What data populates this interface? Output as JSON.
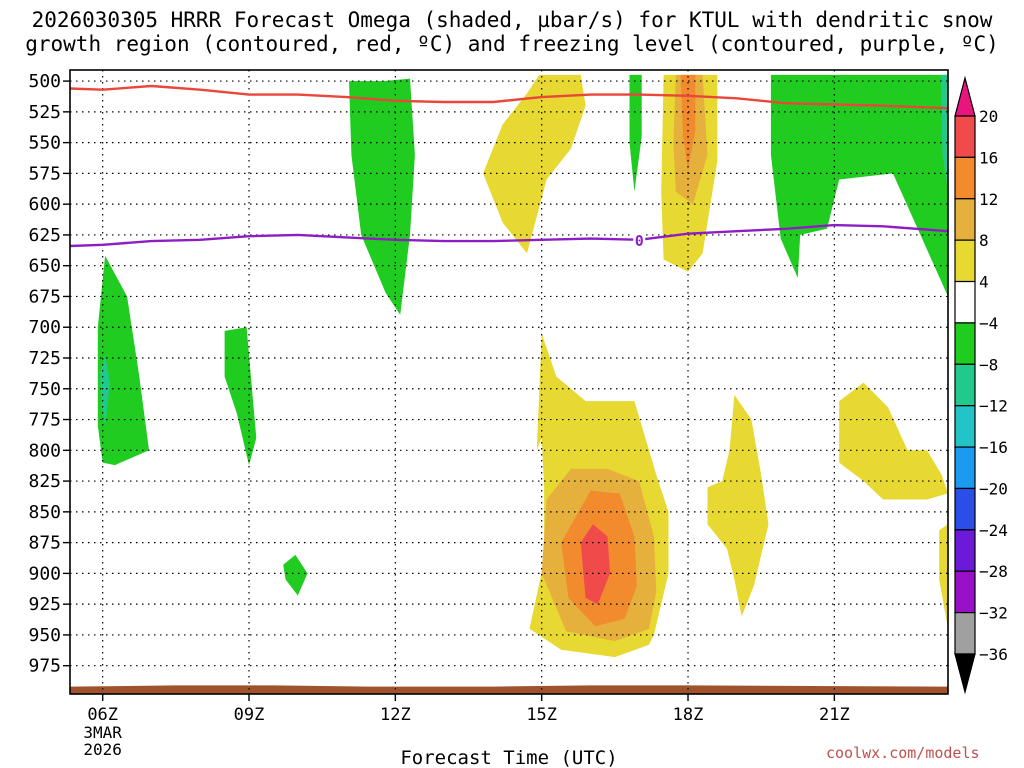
{
  "chart_data": {
    "type": "heatmap",
    "title_lines": [
      "2026030305 HRRR Forecast Omega (shaded, µbar/s) for KTUL with dendritic snow",
      "growth region (contoured, red, ºC) and freezing level (contoured, purple, ºC)"
    ],
    "xlabel": "Forecast Time (UTC)",
    "x_range_hours": [
      5.33,
      23.33
    ],
    "x_ticks": [
      {
        "hour": 6,
        "label": "06Z",
        "sub": [
          "3MAR",
          "2026"
        ]
      },
      {
        "hour": 9,
        "label": "09Z",
        "sub": []
      },
      {
        "hour": 12,
        "label": "12Z",
        "sub": []
      },
      {
        "hour": 15,
        "label": "15Z",
        "sub": []
      },
      {
        "hour": 18,
        "label": "18Z",
        "sub": []
      },
      {
        "hour": 21,
        "label": "21Z",
        "sub": []
      }
    ],
    "y_range_hpa": [
      491,
      998
    ],
    "y_ticks": [
      "500",
      "525",
      "550",
      "575",
      "600",
      "625",
      "650",
      "675",
      "700",
      "725",
      "750",
      "775",
      "800",
      "825",
      "850",
      "875",
      "900",
      "925",
      "950",
      "975"
    ],
    "colorbar_labels": [
      "20",
      "16",
      "12",
      "8",
      "4",
      "−4",
      "−8",
      "−12",
      "−16",
      "−20",
      "−24",
      "−28",
      "−32",
      "−36"
    ],
    "colorbar_colors": [
      "#e8157f",
      "#f04a4a",
      "#f28a2e",
      "#e6b03d",
      "#e8d832",
      "#ffffff",
      "#1fcc1f",
      "#22c98c",
      "#22c4c8",
      "#1a9bf0",
      "#2a4ee8",
      "#6a1ad8",
      "#9a10c8",
      "#a0a0a0",
      "#000000"
    ],
    "snow_growth_region_line": {
      "name": "dendritic snow growth region (red)",
      "hours": [
        5.33,
        6,
        7,
        8,
        9,
        10,
        11,
        12,
        13,
        14,
        15,
        16,
        17,
        18,
        19,
        20,
        21,
        22,
        23.33
      ],
      "hpa": [
        506,
        507,
        504,
        507,
        511,
        511,
        513,
        516,
        517,
        517,
        513,
        511,
        511,
        512,
        514,
        518,
        519,
        520,
        522
      ]
    },
    "freezing_level_line": {
      "name": "freezing level 0ºC (purple)",
      "label": "0",
      "hours": [
        5.33,
        6,
        7,
        8,
        9,
        10,
        11,
        12,
        13,
        14,
        15,
        16,
        17,
        18,
        19,
        20,
        21,
        22,
        23.33
      ],
      "hpa": [
        634,
        633,
        630,
        629,
        626,
        625,
        627,
        629,
        630,
        630,
        629,
        628,
        629,
        624,
        622,
        620,
        617,
        618,
        622
      ]
    },
    "omega_regions": [
      {
        "name": "green-upper-12z",
        "color": "#1fcc1f",
        "pts": [
          [
            11.35,
            500
          ],
          [
            11.75,
            500
          ],
          [
            12.3,
            498
          ],
          [
            12.4,
            560
          ],
          [
            12.3,
            625
          ],
          [
            12.1,
            690
          ],
          [
            11.8,
            672
          ],
          [
            11.3,
            625
          ],
          [
            11.1,
            560
          ],
          [
            11.05,
            500
          ]
        ]
      },
      {
        "name": "green-left-06z",
        "color": "#1fcc1f",
        "pts": [
          [
            5.9,
            780
          ],
          [
            5.9,
            700
          ],
          [
            6.05,
            642
          ],
          [
            6.5,
            675
          ],
          [
            6.75,
            740
          ],
          [
            6.95,
            800
          ],
          [
            6.25,
            812
          ],
          [
            6.0,
            810
          ]
        ]
      },
      {
        "name": "teal-06z",
        "color": "#22c98c",
        "pts": [
          [
            5.95,
            737
          ],
          [
            6.05,
            723
          ],
          [
            6.15,
            745
          ],
          [
            6.05,
            780
          ],
          [
            5.97,
            760
          ]
        ]
      },
      {
        "name": "green-09z",
        "color": "#1fcc1f",
        "pts": [
          [
            8.5,
            703
          ],
          [
            8.95,
            700
          ],
          [
            9.15,
            790
          ],
          [
            9.0,
            812
          ],
          [
            8.75,
            770
          ],
          [
            8.5,
            740
          ]
        ]
      },
      {
        "name": "green-small-10z",
        "color": "#1fcc1f",
        "pts": [
          [
            9.7,
            893
          ],
          [
            9.95,
            885
          ],
          [
            10.2,
            900
          ],
          [
            10.0,
            918
          ],
          [
            9.75,
            905
          ]
        ]
      },
      {
        "name": "green-17z",
        "color": "#1fcc1f",
        "pts": [
          [
            16.8,
            495
          ],
          [
            17.05,
            495
          ],
          [
            17.05,
            545
          ],
          [
            16.9,
            590
          ],
          [
            16.8,
            550
          ]
        ]
      },
      {
        "name": "green-right-20z",
        "color": "#1fcc1f",
        "pts": [
          [
            19.7,
            495
          ],
          [
            23.33,
            495
          ],
          [
            23.33,
            675
          ],
          [
            22.8,
            628
          ],
          [
            22.2,
            575
          ],
          [
            21.1,
            580
          ],
          [
            20.85,
            620
          ],
          [
            20.3,
            625
          ],
          [
            20.25,
            660
          ],
          [
            19.9,
            628
          ],
          [
            19.7,
            560
          ]
        ]
      },
      {
        "name": "teal-edge",
        "color": "#22c98c",
        "pts": [
          [
            23.18,
            495
          ],
          [
            23.33,
            495
          ],
          [
            23.33,
            590
          ],
          [
            23.22,
            560
          ]
        ]
      },
      {
        "name": "yellow-upper-15z",
        "color": "#e8d832",
        "pts": [
          [
            14.95,
            495
          ],
          [
            15.45,
            495
          ],
          [
            15.8,
            495
          ],
          [
            15.9,
            520
          ],
          [
            15.6,
            555
          ],
          [
            15.1,
            580
          ],
          [
            14.9,
            610
          ],
          [
            14.7,
            640
          ],
          [
            14.2,
            615
          ],
          [
            13.8,
            575
          ],
          [
            14.2,
            535
          ],
          [
            14.7,
            510
          ]
        ]
      },
      {
        "name": "yellow-upper-18z",
        "color": "#e8d832",
        "pts": [
          [
            17.5,
            495
          ],
          [
            18.6,
            495
          ],
          [
            18.6,
            565
          ],
          [
            18.3,
            640
          ],
          [
            18.0,
            655
          ],
          [
            17.5,
            645
          ],
          [
            17.45,
            590
          ]
        ]
      },
      {
        "name": "orange-tan-18z",
        "color": "#e6b03d",
        "pts": [
          [
            17.75,
            495
          ],
          [
            18.3,
            495
          ],
          [
            18.4,
            560
          ],
          [
            18.1,
            600
          ],
          [
            17.75,
            590
          ],
          [
            17.7,
            550
          ]
        ]
      },
      {
        "name": "orange-18z",
        "color": "#f28a2e",
        "pts": [
          [
            17.85,
            495
          ],
          [
            18.15,
            495
          ],
          [
            18.15,
            540
          ],
          [
            18.0,
            573
          ],
          [
            17.9,
            545
          ]
        ]
      },
      {
        "name": "yellow-lower-15z",
        "color": "#e8d832",
        "pts": [
          [
            15.0,
            705
          ],
          [
            15.3,
            740
          ],
          [
            15.9,
            760
          ],
          [
            16.9,
            760
          ],
          [
            17.35,
            820
          ],
          [
            17.6,
            850
          ],
          [
            17.6,
            900
          ],
          [
            17.3,
            950
          ],
          [
            17.2,
            958
          ],
          [
            16.5,
            968
          ],
          [
            15.4,
            962
          ],
          [
            14.75,
            945
          ],
          [
            15.05,
            890
          ],
          [
            15.05,
            830
          ],
          [
            15.0,
            790
          ],
          [
            14.9,
            800
          ]
        ]
      },
      {
        "name": "tan-lower-16z",
        "color": "#e6b03d",
        "pts": [
          [
            15.1,
            840
          ],
          [
            15.6,
            815
          ],
          [
            16.35,
            815
          ],
          [
            17.0,
            825
          ],
          [
            17.3,
            870
          ],
          [
            17.35,
            915
          ],
          [
            17.2,
            945
          ],
          [
            16.5,
            955
          ],
          [
            15.5,
            947
          ],
          [
            15.0,
            900
          ]
        ]
      },
      {
        "name": "orange-lower-16z",
        "color": "#f28a2e",
        "pts": [
          [
            15.4,
            875
          ],
          [
            16.0,
            833
          ],
          [
            16.6,
            835
          ],
          [
            16.9,
            870
          ],
          [
            16.95,
            910
          ],
          [
            16.7,
            937
          ],
          [
            16.1,
            943
          ],
          [
            15.55,
            920
          ]
        ]
      },
      {
        "name": "red-lower-16z",
        "color": "#f04a4a",
        "pts": [
          [
            15.8,
            875
          ],
          [
            16.05,
            860
          ],
          [
            16.35,
            870
          ],
          [
            16.4,
            900
          ],
          [
            16.15,
            925
          ],
          [
            15.9,
            920
          ]
        ]
      },
      {
        "name": "yellow-19z",
        "color": "#e8d832",
        "pts": [
          [
            18.95,
            755
          ],
          [
            19.3,
            775
          ],
          [
            19.5,
            820
          ],
          [
            19.65,
            860
          ],
          [
            19.35,
            910
          ],
          [
            19.1,
            935
          ],
          [
            18.95,
            905
          ],
          [
            18.8,
            880
          ],
          [
            18.4,
            860
          ],
          [
            18.4,
            830
          ],
          [
            18.7,
            825
          ],
          [
            18.85,
            800
          ]
        ]
      },
      {
        "name": "yellow-21z",
        "color": "#e8d832",
        "pts": [
          [
            21.1,
            760
          ],
          [
            21.6,
            745
          ],
          [
            22.1,
            765
          ],
          [
            22.5,
            800
          ],
          [
            22.9,
            800
          ],
          [
            23.2,
            820
          ],
          [
            23.33,
            835
          ],
          [
            22.9,
            840
          ],
          [
            22.0,
            840
          ],
          [
            21.6,
            825
          ],
          [
            21.1,
            810
          ]
        ]
      },
      {
        "name": "yellow-edge",
        "color": "#e8d832",
        "pts": [
          [
            23.15,
            865
          ],
          [
            23.33,
            860
          ],
          [
            23.33,
            945
          ],
          [
            23.15,
            905
          ]
        ]
      }
    ],
    "terrain": {
      "color": "#a0522d",
      "hours": [
        5.33,
        7.5,
        9.5,
        11.5,
        14,
        16,
        18,
        23.33
      ],
      "hpa": [
        992,
        991,
        991,
        992,
        992,
        991,
        991,
        992
      ]
    }
  },
  "credit": "coolwx.com/models"
}
